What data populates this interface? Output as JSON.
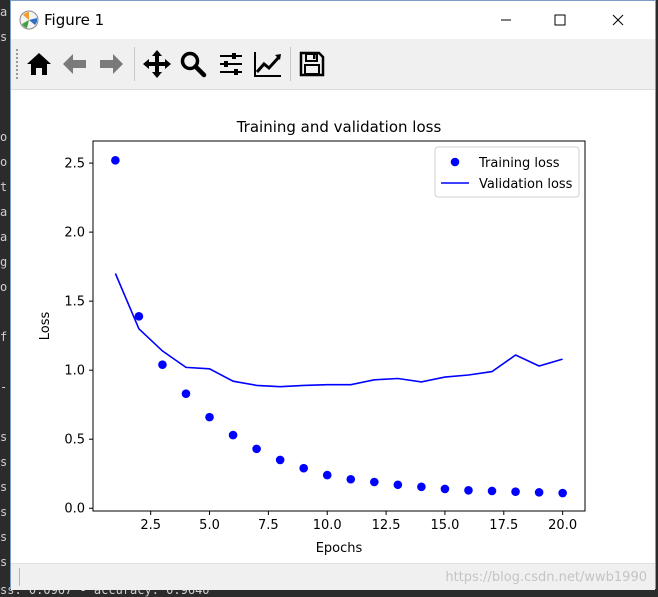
{
  "window": {
    "title": "Figure 1"
  },
  "terminal": {
    "left_chars": [
      "a",
      "s",
      "",
      "",
      "",
      "o",
      "o",
      "t",
      "a",
      "a",
      "g",
      "o",
      "",
      "f",
      "",
      "-",
      "",
      "s",
      "s",
      "s",
      "s",
      "s",
      "s"
    ],
    "bottom_line": "ss: 0.0967 - accuracy: 0.9640"
  },
  "toolbar": {
    "buttons": [
      {
        "name": "home",
        "icon": "home-icon"
      },
      {
        "name": "back",
        "icon": "arrow-left-icon"
      },
      {
        "name": "forward",
        "icon": "arrow-right-icon"
      },
      {
        "name": "pan",
        "icon": "move-icon"
      },
      {
        "name": "zoom",
        "icon": "zoom-icon"
      },
      {
        "name": "configure-subplots",
        "icon": "sliders-icon"
      },
      {
        "name": "edit-axis",
        "icon": "line-chart-icon"
      },
      {
        "name": "save",
        "icon": "save-icon"
      }
    ]
  },
  "status": {
    "watermark": "https://blog.csdn.net/wwb1990"
  },
  "colors": {
    "series": "#0000ff",
    "axes": "#000000"
  },
  "chart_data": {
    "type": "line",
    "title": "Training and validation loss",
    "xlabel": "Epochs",
    "ylabel": "Loss",
    "xlim": [
      0.05,
      20.95
    ],
    "ylim": [
      -0.02,
      2.66
    ],
    "xticks": [
      2.5,
      5.0,
      7.5,
      10.0,
      12.5,
      15.0,
      17.5,
      20.0
    ],
    "xtick_labels": [
      "2.5",
      "5.0",
      "7.5",
      "10.0",
      "12.5",
      "15.0",
      "17.5",
      "20.0"
    ],
    "yticks": [
      0.0,
      0.5,
      1.0,
      1.5,
      2.0,
      2.5
    ],
    "ytick_labels": [
      "0.0",
      "0.5",
      "1.0",
      "1.5",
      "2.0",
      "2.5"
    ],
    "legend_position": "top-right",
    "x": [
      1,
      2,
      3,
      4,
      5,
      6,
      7,
      8,
      9,
      10,
      11,
      12,
      13,
      14,
      15,
      16,
      17,
      18,
      19,
      20
    ],
    "series": [
      {
        "name": "Training loss",
        "style": "markers",
        "values": [
          2.52,
          1.39,
          1.04,
          0.83,
          0.66,
          0.53,
          0.43,
          0.35,
          0.29,
          0.24,
          0.21,
          0.19,
          0.17,
          0.155,
          0.14,
          0.13,
          0.125,
          0.12,
          0.115,
          0.11
        ]
      },
      {
        "name": "Validation loss",
        "style": "line",
        "values": [
          1.7,
          1.3,
          1.14,
          1.02,
          1.01,
          0.92,
          0.89,
          0.88,
          0.89,
          0.895,
          0.895,
          0.93,
          0.94,
          0.915,
          0.95,
          0.965,
          0.99,
          1.11,
          1.03,
          1.08
        ]
      }
    ]
  }
}
